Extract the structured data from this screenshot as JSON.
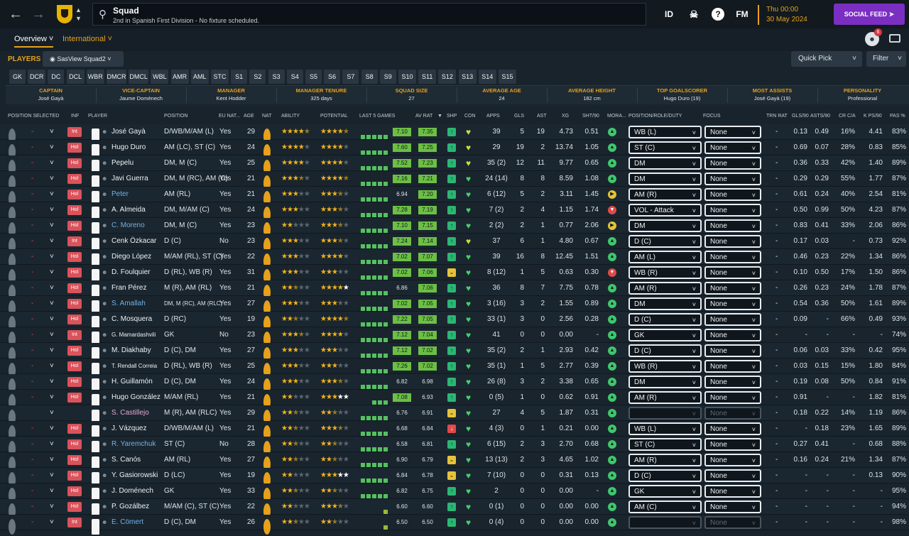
{
  "header": {
    "title": "Squad",
    "subtitle": "2nd in Spanish First Division - No fixture scheduled.",
    "id_label": "ID",
    "fm_label": "FM",
    "date_line1": "Thu 00:00",
    "date_line2": "30 May 2024",
    "social_feed": "SOCIAL FEED",
    "notification_count": "6"
  },
  "subnav": {
    "overview": "Overview",
    "international": "International"
  },
  "toolbar": {
    "players": "PLAYERS",
    "view": "SasView Squad2",
    "quick_pick": "Quick Pick",
    "filter": "Filter"
  },
  "positions": [
    "GK",
    "DCR",
    "DC",
    "DCL",
    "WBR",
    "DMCR",
    "DMCL",
    "WBL",
    "AMR",
    "AML",
    "STC",
    "S1",
    "S2",
    "S3",
    "S4",
    "S5",
    "S6",
    "S7",
    "S8",
    "S9",
    "S10",
    "S11",
    "S12",
    "S13",
    "S14",
    "S15"
  ],
  "info": [
    {
      "label": "CAPTAIN",
      "value": "José Gayà"
    },
    {
      "label": "VICE-CAPTAIN",
      "value": "Jaume Domènech"
    },
    {
      "label": "MANAGER",
      "value": "Kent Hodder"
    },
    {
      "label": "MANAGER TENURE",
      "value": "325 days"
    },
    {
      "label": "SQUAD SIZE",
      "value": "27"
    },
    {
      "label": "AVERAGE AGE",
      "value": "24"
    },
    {
      "label": "AVERAGE HEIGHT",
      "value": "182 cm"
    },
    {
      "label": "TOP GOALSCORER",
      "value": "Hugo Duro (19)"
    },
    {
      "label": "MOST ASSISTS",
      "value": "José Gayà (19)"
    },
    {
      "label": "PERSONALITY",
      "value": "Professional"
    }
  ],
  "columns": {
    "position_selected": "POSITION SELECTED",
    "inf": "INF",
    "player": "PLAYER",
    "position": "POSITION",
    "eu": "EU NAT...",
    "age": "AGE",
    "nat": "NAT",
    "ability": "ABILITY",
    "potential": "POTENTIAL",
    "last5": "LAST 5 GAMES",
    "avrat": "AV RAT",
    "shp": "SHP",
    "con": "CON",
    "apps": "APPS",
    "gls": "GLS",
    "ast": "AST",
    "xg": "XG",
    "sht90": "SHT/90",
    "mor": "MORA...",
    "role": "POSITION/ROLE/DUTY",
    "focus": "FOCUS",
    "trn": "TRN RAT",
    "gls90": "GLS/90",
    "asts90": "ASTS/90",
    "crca": "CR C/A",
    "kps90": "K PS/90",
    "pas": "PAS %"
  },
  "colors": {
    "accent": "#e6a11b",
    "social": "#7a2fc2",
    "form_green": "#6cbf45",
    "inf_red": "#d9535b"
  },
  "rows": [
    {
      "sel": "-",
      "inf": "Int",
      "name": "José Gayà",
      "blue": false,
      "pos": "D/WB/M/AM (L)",
      "eu": "Yes",
      "age": "29",
      "ab": 4.5,
      "pot": 4.5,
      "pot_white": false,
      "last5": 5,
      "form": "7.10",
      "av": "7.35",
      "shp": "g",
      "con": "y",
      "apps": "39",
      "gls": "5",
      "ast": "19",
      "xg": "4.73",
      "sht": "0.51",
      "mor": "g",
      "role": "WB (L)",
      "focus": "None",
      "trn": "-",
      "g90": "0.13",
      "a90": "0.49",
      "cr": "16%",
      "kp": "4.41",
      "pas": "83%"
    },
    {
      "sel": "-",
      "inf": "Hol",
      "name": "Hugo Duro",
      "blue": false,
      "pos": "AM (LC), ST (C)",
      "eu": "Yes",
      "age": "24",
      "ab": 4,
      "pot": 4,
      "pot_white": false,
      "last5": 5,
      "form": "7.60",
      "av": "7.25",
      "shp": "g",
      "con": "y",
      "apps": "29",
      "gls": "19",
      "ast": "2",
      "xg": "13.74",
      "sht": "1.05",
      "mor": "g",
      "role": "ST (C)",
      "focus": "None",
      "trn": "-",
      "g90": "0.69",
      "a90": "0.07",
      "cr": "28%",
      "kp": "0.83",
      "pas": "85%"
    },
    {
      "sel": "-",
      "inf": "Hol",
      "name": "Pepelu",
      "blue": false,
      "pos": "DM, M (C)",
      "eu": "Yes",
      "age": "25",
      "ab": 4,
      "pot": 4,
      "pot_white": false,
      "last5": 5,
      "form": "7.52",
      "av": "7.23",
      "shp": "g",
      "con": "y",
      "apps": "35 (2)",
      "gls": "12",
      "ast": "11",
      "xg": "9.77",
      "sht": "0.65",
      "mor": "g",
      "role": "DM",
      "focus": "None",
      "trn": "-",
      "g90": "0.36",
      "a90": "0.33",
      "cr": "42%",
      "kp": "1.40",
      "pas": "89%"
    },
    {
      "sel": "-",
      "inf": "Hol",
      "name": "Javi Guerra",
      "blue": false,
      "pos": "DM, M (RC), AM (C)",
      "eu": "Yes",
      "age": "21",
      "ab": 3.5,
      "pot": 4.5,
      "pot_white": false,
      "last5": 5,
      "form": "7.16",
      "av": "7.21",
      "shp": "g",
      "con": "g",
      "apps": "24 (14)",
      "gls": "8",
      "ast": "8",
      "xg": "8.59",
      "sht": "1.08",
      "mor": "g",
      "role": "DM",
      "focus": "None",
      "trn": "-",
      "g90": "0.29",
      "a90": "0.29",
      "cr": "55%",
      "kp": "1.77",
      "pas": "87%"
    },
    {
      "sel": "-",
      "inf": "Hol",
      "name": "Peter",
      "blue": true,
      "pos": "AM (RL)",
      "eu": "Yes",
      "age": "21",
      "ab": 3,
      "pot": 3.5,
      "pot_white": false,
      "last5": 5,
      "form": "6.94",
      "av": "7.20",
      "shp": "g",
      "con": "g",
      "apps": "6 (12)",
      "gls": "5",
      "ast": "2",
      "xg": "3.11",
      "sht": "1.45",
      "mor": "y",
      "role": "AM (R)",
      "focus": "None",
      "trn": "-",
      "g90": "0.61",
      "a90": "0.24",
      "cr": "40%",
      "kp": "2.54",
      "pas": "81%"
    },
    {
      "sel": "-",
      "inf": "Hol",
      "name": "A. Almeida",
      "blue": false,
      "pos": "DM, M/AM (C)",
      "eu": "Yes",
      "age": "24",
      "ab": 3,
      "pot": 3.5,
      "pot_white": false,
      "last5": 5,
      "form": "7.28",
      "av": "7.19",
      "shp": "g",
      "con": "g",
      "apps": "7 (2)",
      "gls": "2",
      "ast": "4",
      "xg": "1.15",
      "sht": "1.74",
      "mor": "r",
      "role": "VOL - Attack",
      "focus": "None",
      "trn": "-",
      "g90": "0.50",
      "a90": "0.99",
      "cr": "50%",
      "kp": "4.23",
      "pas": "87%"
    },
    {
      "sel": "-",
      "inf": "Hol",
      "name": "C. Moreno",
      "blue": true,
      "pos": "DM, M (C)",
      "eu": "Yes",
      "age": "23",
      "ab": 2,
      "pot": 3.5,
      "pot_white": false,
      "last5": 5,
      "form": "7.10",
      "av": "7.15",
      "shp": "g",
      "con": "g",
      "apps": "2 (2)",
      "gls": "2",
      "ast": "1",
      "xg": "0.77",
      "sht": "2.06",
      "mor": "y",
      "role": "DM",
      "focus": "None",
      "trn": "-",
      "g90": "0.83",
      "a90": "0.41",
      "cr": "33%",
      "kp": "2.06",
      "pas": "86%"
    },
    {
      "sel": "-",
      "inf": "Int",
      "name": "Cenk Özkacar",
      "blue": false,
      "pos": "D (C)",
      "eu": "No",
      "age": "23",
      "ab": 3,
      "pot": 3.5,
      "pot_white": false,
      "last5": 5,
      "form": "7.24",
      "av": "7.14",
      "shp": "g",
      "con": "y",
      "apps": "37",
      "gls": "6",
      "ast": "1",
      "xg": "4.80",
      "sht": "0.67",
      "mor": "g",
      "role": "D (C)",
      "focus": "None",
      "trn": "-",
      "g90": "0.17",
      "a90": "0.03",
      "cr": "-",
      "kp": "0.73",
      "pas": "92%"
    },
    {
      "sel": "-",
      "inf": "Hol",
      "name": "Diego López",
      "blue": false,
      "pos": "M/AM (RL), ST (C)",
      "eu": "Yes",
      "age": "22",
      "ab": 3,
      "pot": 4,
      "pot_white": false,
      "last5": 5,
      "form": "7.02",
      "av": "7.07",
      "shp": "g",
      "con": "g",
      "apps": "39",
      "gls": "16",
      "ast": "8",
      "xg": "12.45",
      "sht": "1.51",
      "mor": "g",
      "role": "AM (L)",
      "focus": "None",
      "trn": "-",
      "g90": "0.46",
      "a90": "0.23",
      "cr": "22%",
      "kp": "1.34",
      "pas": "86%"
    },
    {
      "sel": "-",
      "inf": "Hol",
      "name": "D. Foulquier",
      "blue": false,
      "pos": "D (RL), WB (R)",
      "eu": "Yes",
      "age": "31",
      "ab": 3,
      "pot": 3,
      "pot_white": false,
      "last5": 5,
      "form": "7.02",
      "av": "7.06",
      "shp": "y",
      "con": "g",
      "apps": "8 (12)",
      "gls": "1",
      "ast": "5",
      "xg": "0.63",
      "sht": "0.30",
      "mor": "r",
      "role": "WB (R)",
      "focus": "None",
      "trn": "-",
      "g90": "0.10",
      "a90": "0.50",
      "cr": "17%",
      "kp": "1.50",
      "pas": "86%"
    },
    {
      "sel": "-",
      "inf": "Hol",
      "name": "Fran Pérez",
      "blue": false,
      "pos": "M (R), AM (RL)",
      "eu": "Yes",
      "age": "21",
      "ab": 2.5,
      "pot": 4,
      "pot_white": true,
      "last5": 5,
      "form": "6.86",
      "av": "7.06",
      "shp": "g",
      "con": "g",
      "apps": "36",
      "gls": "8",
      "ast": "7",
      "xg": "7.75",
      "sht": "0.78",
      "mor": "g",
      "role": "AM (R)",
      "focus": "None",
      "trn": "-",
      "g90": "0.26",
      "a90": "0.23",
      "cr": "24%",
      "kp": "1.78",
      "pas": "87%"
    },
    {
      "sel": "-",
      "inf": "Hol",
      "name": "S. Amallah",
      "blue": true,
      "pos": "DM, M (RC), AM (RLC)",
      "eu": "Yes",
      "age": "27",
      "ab": 3,
      "pot": 3,
      "pot_white": false,
      "last5": 5,
      "form": "7.02",
      "av": "7.05",
      "shp": "g",
      "con": "g",
      "apps": "3 (16)",
      "gls": "3",
      "ast": "2",
      "xg": "1.55",
      "sht": "0.89",
      "mor": "g",
      "role": "DM",
      "focus": "None",
      "trn": "-",
      "g90": "0.54",
      "a90": "0.36",
      "cr": "50%",
      "kp": "1.61",
      "pas": "89%"
    },
    {
      "sel": "-",
      "inf": "Hol",
      "name": "C. Mosquera",
      "blue": false,
      "pos": "D (RC)",
      "eu": "Yes",
      "age": "19",
      "ab": 2.5,
      "pot": 4.5,
      "pot_white": false,
      "last5": 5,
      "form": "7.22",
      "av": "7.05",
      "shp": "g",
      "con": "g",
      "apps": "33 (1)",
      "gls": "3",
      "ast": "0",
      "xg": "2.56",
      "sht": "0.28",
      "mor": "g",
      "role": "D (C)",
      "focus": "None",
      "trn": "-",
      "g90": "0.09",
      "a90": "-",
      "cr": "66%",
      "kp": "0.49",
      "pas": "93%"
    },
    {
      "sel": "-",
      "inf": "Int",
      "name": "G. Mamardashvili",
      "blue": false,
      "pos": "GK",
      "eu": "No",
      "age": "23",
      "ab": 3.5,
      "pot": 4,
      "pot_white": false,
      "last5": 5,
      "form": "7.12",
      "av": "7.04",
      "shp": "g",
      "con": "g",
      "apps": "41",
      "gls": "0",
      "ast": "0",
      "xg": "0.00",
      "sht": "-",
      "mor": "g",
      "role": "GK",
      "focus": "None",
      "trn": "-",
      "g90": "-",
      "a90": "-",
      "cr": "-",
      "kp": "-",
      "pas": "74%"
    },
    {
      "sel": "-",
      "inf": "Hol",
      "name": "M. Diakhaby",
      "blue": false,
      "pos": "D (C), DM",
      "eu": "Yes",
      "age": "27",
      "ab": 3,
      "pot": 3,
      "pot_white": false,
      "last5": 5,
      "form": "7.12",
      "av": "7.02",
      "shp": "g",
      "con": "g",
      "apps": "35 (2)",
      "gls": "2",
      "ast": "1",
      "xg": "2.93",
      "sht": "0.42",
      "mor": "g",
      "role": "D (C)",
      "focus": "None",
      "trn": "-",
      "g90": "0.06",
      "a90": "0.03",
      "cr": "33%",
      "kp": "0.42",
      "pas": "95%"
    },
    {
      "sel": "-",
      "inf": "Hol",
      "name": "T. Rendall Correia",
      "blue": false,
      "pos": "D (RL), WB (R)",
      "eu": "Yes",
      "age": "25",
      "ab": 3,
      "pot": 3,
      "pot_white": false,
      "last5": 5,
      "form": "7.26",
      "av": "7.02",
      "shp": "g",
      "con": "g",
      "apps": "35 (1)",
      "gls": "1",
      "ast": "5",
      "xg": "2.77",
      "sht": "0.39",
      "mor": "g",
      "role": "WB (R)",
      "focus": "None",
      "trn": "-",
      "g90": "0.03",
      "a90": "0.15",
      "cr": "15%",
      "kp": "1.80",
      "pas": "84%"
    },
    {
      "sel": "-",
      "inf": "Hol",
      "name": "H. Guillamón",
      "blue": false,
      "pos": "D (C), DM",
      "eu": "Yes",
      "age": "24",
      "ab": 3,
      "pot": 3.5,
      "pot_white": false,
      "last5": 5,
      "form": "6.82",
      "av": "6.98",
      "shp": "g",
      "con": "g",
      "apps": "26 (8)",
      "gls": "3",
      "ast": "2",
      "xg": "3.38",
      "sht": "0.65",
      "mor": "g",
      "role": "DM",
      "focus": "None",
      "trn": "-",
      "g90": "0.19",
      "a90": "0.08",
      "cr": "50%",
      "kp": "0.84",
      "pas": "91%"
    },
    {
      "sel": "-",
      "inf": "Hol",
      "name": "Hugo González",
      "blue": false,
      "pos": "M/AM (RL)",
      "eu": "Yes",
      "age": "21",
      "ab": 2,
      "pot": 3,
      "pot_white": true,
      "last5": 3,
      "form": "7.08",
      "av": "6.93",
      "shp": "g",
      "con": "g",
      "apps": "0 (5)",
      "gls": "1",
      "ast": "0",
      "xg": "0.62",
      "sht": "0.91",
      "mor": "g",
      "role": "AM (R)",
      "focus": "None",
      "trn": "-",
      "g90": "0.91",
      "a90": "-",
      "cr": "-",
      "kp": "1.82",
      "pas": "81%"
    },
    {
      "sel": "",
      "inf": "",
      "name": "S. Castillejo",
      "blue": false,
      "pink": true,
      "pos": "M (R), AM (RLC)",
      "eu": "Yes",
      "age": "29",
      "ab": 2.5,
      "pot": 2.5,
      "pot_white": false,
      "last5": 5,
      "form": "6.76",
      "av": "6.91",
      "shp": "y",
      "con": "g",
      "apps": "27",
      "gls": "4",
      "ast": "5",
      "xg": "1.87",
      "sht": "0.31",
      "mor": "g",
      "role": "",
      "focus": "None",
      "dim": true,
      "trn": "-",
      "g90": "0.18",
      "a90": "0.22",
      "cr": "14%",
      "kp": "1.19",
      "pas": "86%"
    },
    {
      "sel": "-",
      "inf": "Hol",
      "name": "J. Vázquez",
      "blue": false,
      "pos": "D/WB/M/AM (L)",
      "eu": "Yes",
      "age": "21",
      "ab": 2.5,
      "pot": 3.5,
      "pot_white": false,
      "last5": 5,
      "form": "6.68",
      "av": "6.84",
      "shp": "r",
      "con": "g",
      "apps": "4 (3)",
      "gls": "0",
      "ast": "1",
      "xg": "0.21",
      "sht": "0.00",
      "mor": "g",
      "role": "WB (L)",
      "focus": "None",
      "trn": "-",
      "g90": "-",
      "a90": "0.18",
      "cr": "23%",
      "kp": "1.65",
      "pas": "89%"
    },
    {
      "sel": "-",
      "inf": "Hol",
      "name": "R. Yaremchuk",
      "blue": true,
      "pos": "ST (C)",
      "eu": "No",
      "age": "28",
      "ab": 2.5,
      "pot": 2.5,
      "pot_white": false,
      "last5": 5,
      "form": "6.58",
      "av": "6.81",
      "shp": "g",
      "con": "g",
      "apps": "6 (15)",
      "gls": "2",
      "ast": "3",
      "xg": "2.70",
      "sht": "0.68",
      "mor": "g",
      "role": "ST (C)",
      "focus": "None",
      "trn": "-",
      "g90": "0.27",
      "a90": "0.41",
      "cr": "-",
      "kp": "0.68",
      "pas": "88%"
    },
    {
      "sel": "-",
      "inf": "Hol",
      "name": "S. Canós",
      "blue": false,
      "pos": "AM (RL)",
      "eu": "Yes",
      "age": "27",
      "ab": 2.5,
      "pot": 2.5,
      "pot_white": false,
      "last5": 5,
      "form": "6.90",
      "av": "6.79",
      "shp": "y",
      "con": "g",
      "apps": "13 (13)",
      "gls": "2",
      "ast": "3",
      "xg": "4.65",
      "sht": "1.02",
      "mor": "g",
      "role": "AM (R)",
      "focus": "None",
      "trn": "-",
      "g90": "0.16",
      "a90": "0.24",
      "cr": "21%",
      "kp": "1.34",
      "pas": "87%"
    },
    {
      "sel": "-",
      "inf": "Hol",
      "name": "Y. Gasiorowski",
      "blue": false,
      "pos": "D (LC)",
      "eu": "Yes",
      "age": "19",
      "ab": 2,
      "pot": 3,
      "pot_white": true,
      "last5": 5,
      "form": "6.84",
      "av": "6.78",
      "shp": "y",
      "con": "g",
      "apps": "7 (10)",
      "gls": "0",
      "ast": "0",
      "xg": "0.31",
      "sht": "0.13",
      "mor": "g",
      "role": "D (C)",
      "focus": "None",
      "trn": "-",
      "g90": "-",
      "a90": "-",
      "cr": "-",
      "kp": "0.13",
      "pas": "90%"
    },
    {
      "sel": "-",
      "inf": "Hol",
      "name": "J. Doménech",
      "blue": false,
      "pos": "GK",
      "eu": "Yes",
      "age": "33",
      "ab": 2.5,
      "pot": 2.5,
      "pot_white": false,
      "last5": 5,
      "form": "6.82",
      "av": "6.75",
      "shp": "g",
      "con": "g",
      "apps": "2",
      "gls": "0",
      "ast": "0",
      "xg": "0.00",
      "sht": "-",
      "mor": "g",
      "role": "GK",
      "focus": "None",
      "trn": "-",
      "g90": "-",
      "a90": "-",
      "cr": "-",
      "kp": "-",
      "pas": "95%"
    },
    {
      "sel": "-",
      "inf": "Hol",
      "name": "P. Gozálbez",
      "blue": false,
      "pos": "M/AM (C), ST (C)",
      "eu": "Yes",
      "age": "22",
      "ab": 2,
      "pot": 3.5,
      "pot_white": false,
      "last5": 1,
      "form": "6.60",
      "av": "6.60",
      "shp": "g",
      "con": "g",
      "apps": "0 (1)",
      "gls": "0",
      "ast": "0",
      "xg": "0.00",
      "sht": "0.00",
      "mor": "g",
      "role": "AM (C)",
      "focus": "None",
      "trn": "-",
      "g90": "-",
      "a90": "-",
      "cr": "-",
      "kp": "-",
      "pas": "94%"
    },
    {
      "sel": "-",
      "inf": "Int",
      "name": "E. Cömert",
      "blue": true,
      "pos": "D (C), DM",
      "eu": "Yes",
      "age": "26",
      "ab": 2.5,
      "pot": 2.5,
      "pot_white": false,
      "last5": 1,
      "form": "6.50",
      "av": "6.50",
      "shp": "g",
      "con": "g",
      "apps": "0 (4)",
      "gls": "0",
      "ast": "0",
      "xg": "0.00",
      "sht": "0.00",
      "mor": "g",
      "role": "",
      "focus": "None",
      "dim": true,
      "trn": "-",
      "g90": "-",
      "a90": "-",
      "cr": "-",
      "kp": "-",
      "pas": "98%"
    }
  ]
}
